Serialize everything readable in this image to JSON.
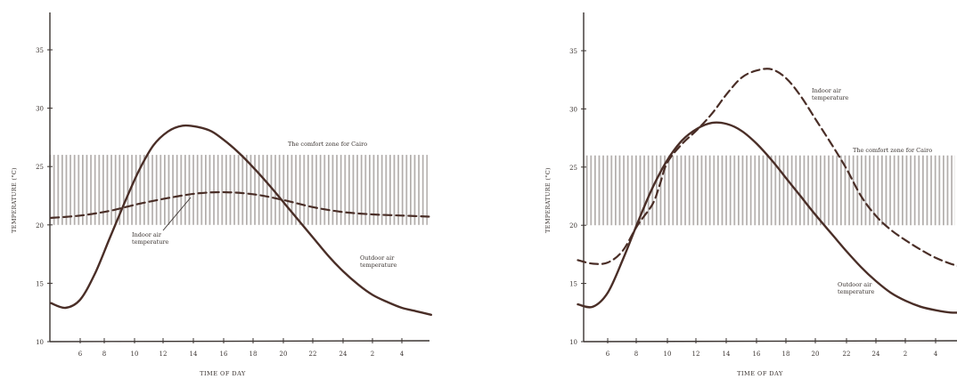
{
  "chart_data": [
    {
      "type": "line",
      "xlabel": "TIME OF DAY",
      "ylabel": "TEMPERATURE (°C)",
      "x_tick_labels": [
        "6",
        "8",
        "10",
        "12",
        "14",
        "16",
        "18",
        "20",
        "22",
        "24",
        "2",
        "4"
      ],
      "y_ticks": [
        10,
        15,
        20,
        25,
        30,
        35
      ],
      "xlim": [
        4,
        30
      ],
      "ylim": [
        10,
        38
      ],
      "comfort_zone": {
        "label": "The comfort zone for Cairo",
        "low": 20,
        "high": 26
      },
      "series": [
        {
          "name": "Outdoor air temperature",
          "style": "solid",
          "x": [
            4,
            5,
            6,
            7,
            8,
            9,
            10,
            11,
            12,
            13,
            14,
            15,
            16,
            17,
            18,
            19,
            20,
            21,
            22,
            23,
            24,
            25,
            26,
            27,
            28,
            29,
            30
          ],
          "y": [
            13.3,
            12.9,
            13.6,
            15.8,
            18.8,
            21.8,
            24.6,
            26.8,
            28.0,
            28.5,
            28.4,
            28.0,
            27.1,
            26.0,
            24.7,
            23.3,
            21.8,
            20.3,
            18.8,
            17.3,
            16.0,
            14.9,
            14.0,
            13.4,
            12.9,
            12.6,
            12.3
          ]
        },
        {
          "name": "Indoor air temperature",
          "style": "dashed",
          "x": [
            4,
            6,
            8,
            10,
            12,
            14,
            16,
            18,
            20,
            22,
            24,
            26,
            28,
            30
          ],
          "y": [
            20.6,
            20.8,
            21.2,
            21.8,
            22.3,
            22.7,
            22.8,
            22.6,
            22.1,
            21.5,
            21.1,
            20.9,
            20.8,
            20.7
          ]
        }
      ],
      "annotations": [
        {
          "text": "Indoor air temperature",
          "lines": [
            "Indoor air",
            "temperature"
          ]
        },
        {
          "text": "Outdoor air temperature",
          "lines": [
            "Outdoor air",
            "temperature"
          ]
        }
      ]
    },
    {
      "type": "line",
      "xlabel": "TIME OF DAY",
      "ylabel": "TEMPERATURE (°C)",
      "x_tick_labels": [
        "6",
        "8",
        "10",
        "12",
        "14",
        "16",
        "18",
        "20",
        "22",
        "24",
        "2",
        "4"
      ],
      "y_ticks": [
        10,
        15,
        20,
        25,
        30,
        35
      ],
      "xlim": [
        4,
        30
      ],
      "ylim": [
        10,
        38
      ],
      "comfort_zone": {
        "label": "The comfort zone for Cairo",
        "low": 20,
        "high": 26
      },
      "series": [
        {
          "name": "Outdoor air temperature",
          "style": "solid",
          "x": [
            4,
            5,
            6,
            7,
            8,
            9,
            10,
            11,
            12,
            13,
            14,
            15,
            16,
            17,
            18,
            19,
            20,
            21,
            22,
            23,
            24,
            25,
            26,
            27,
            28,
            29,
            30
          ],
          "y": [
            13.2,
            13.0,
            14.2,
            17.0,
            20.2,
            23.2,
            25.6,
            27.3,
            28.3,
            28.8,
            28.7,
            28.1,
            27.0,
            25.6,
            24.0,
            22.4,
            20.8,
            19.3,
            17.8,
            16.4,
            15.2,
            14.2,
            13.5,
            13.0,
            12.7,
            12.5,
            12.5
          ]
        },
        {
          "name": "Indoor air temperature",
          "style": "dashed",
          "x": [
            4,
            5,
            6,
            7,
            8,
            9,
            9.5,
            10,
            11,
            12,
            13,
            14,
            15,
            16,
            17,
            18,
            19,
            20,
            21,
            22,
            23,
            24,
            25,
            26,
            27,
            28,
            29,
            30
          ],
          "y": [
            17.0,
            16.7,
            16.8,
            17.8,
            20.0,
            21.8,
            23.5,
            25.4,
            27.0,
            28.2,
            29.6,
            31.3,
            32.7,
            33.3,
            33.4,
            32.6,
            31.0,
            29.0,
            27.0,
            24.9,
            22.5,
            20.8,
            19.6,
            18.7,
            17.9,
            17.2,
            16.7,
            16.3
          ]
        }
      ],
      "annotations": [
        {
          "text": "Indoor air temperature",
          "lines": [
            "Indoor air",
            "temperature"
          ]
        },
        {
          "text": "Outdoor air temperature",
          "lines": [
            "Outdoor air",
            "temperature"
          ]
        }
      ]
    }
  ]
}
